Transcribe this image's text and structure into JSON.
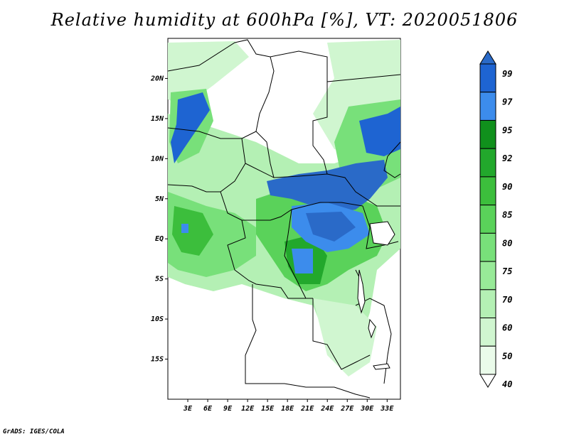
{
  "title": "Relative humidity at 600hPa [%], VT: 2020051806",
  "credit": "GrADS: IGES/COLA",
  "map": {
    "lon_labels": [
      "3E",
      "6E",
      "9E",
      "12E",
      "15E",
      "18E",
      "21E",
      "24E",
      "27E",
      "30E",
      "33E"
    ],
    "lat_labels": [
      "20N",
      "15N",
      "10N",
      "5N",
      "EQ",
      "5S",
      "10S",
      "15S"
    ],
    "lon_values": [
      3,
      6,
      9,
      12,
      15,
      18,
      21,
      24,
      27,
      30,
      33
    ],
    "lat_values": [
      20,
      15,
      10,
      5,
      0,
      -5,
      -10,
      -15
    ],
    "lon_range": [
      0,
      35
    ],
    "lat_range": [
      -20,
      25
    ]
  },
  "colorbar": {
    "levels": [
      "99",
      "97",
      "95",
      "92",
      "90",
      "85",
      "80",
      "75",
      "70",
      "60",
      "50",
      "40"
    ],
    "colors": [
      "#2a6ac8",
      "#1e64d2",
      "#3c8cec",
      "#10901c",
      "#22a82c",
      "#3cbe3c",
      "#5ad25a",
      "#78e07a",
      "#98ea98",
      "#b4f0b4",
      "#d0f6d0",
      "#eafbea"
    ]
  },
  "regions": [
    {
      "name": "sahel-moist-west",
      "color": "#b4f0b4"
    },
    {
      "name": "congo-moist",
      "color": "#5ad25a"
    },
    {
      "name": "central-saturated",
      "color": "#1e64d2"
    }
  ]
}
